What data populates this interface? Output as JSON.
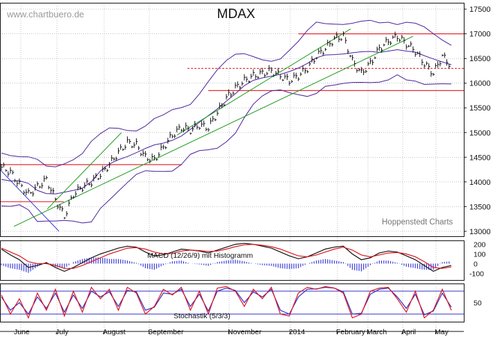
{
  "watermark": "www.chartbuero.de",
  "credit": "Hoppenstedt Charts",
  "colors": {
    "price": "#111111",
    "bollinger": "#4a1f9e",
    "trend": "#1a9a1a",
    "level": "#e0141e",
    "macd": "#111111",
    "signal": "#e0141e",
    "histogram": "#3b3bd6",
    "stoch_k": "#e0141e",
    "stoch_d": "#3030c8",
    "stoch_band": "#3030c8",
    "grid": "#9a9a9a"
  },
  "chart_data": [
    {
      "type": "line",
      "title": "MDAX",
      "ylim": [
        12900,
        17600
      ],
      "y_ticks": [
        "17500",
        "17000",
        "16500",
        "16000",
        "15500",
        "15000",
        "14500",
        "14000",
        "13500",
        "13000"
      ],
      "x_ticks": [
        "June",
        "July",
        "August",
        "September",
        "November",
        "2014",
        "February",
        "March",
        "April",
        "May"
      ],
      "series": [
        {
          "x": [
            0,
            5,
            10,
            15,
            20,
            25,
            30,
            35,
            40,
            45,
            50,
            55,
            60,
            65,
            70,
            75,
            80,
            85,
            90,
            95,
            100,
            105,
            110,
            115,
            120,
            125,
            130,
            135,
            140,
            145,
            150,
            155,
            160,
            165,
            170,
            175,
            180,
            185,
            190,
            195,
            200,
            205,
            210,
            215,
            220,
            225,
            230,
            235,
            240,
            245,
            250
          ],
          "values": [
            14300,
            14200,
            13950,
            13750,
            13900,
            14050,
            13650,
            13300,
            13750,
            13900,
            14000,
            14150,
            14350,
            14600,
            14800,
            14750,
            14500,
            14450,
            14700,
            14950,
            15100,
            15050,
            15150,
            15100,
            15400,
            15700,
            15900,
            16050,
            16150,
            16200,
            16250,
            16150,
            16050,
            16150,
            16300,
            16550,
            16700,
            16900,
            16950,
            16450,
            16200,
            16400,
            16700,
            16850,
            16950,
            16800,
            16650,
            16400,
            16200,
            16550,
            16350
          ]
        }
      ],
      "levels": [
        17000,
        16300,
        15850,
        14350,
        13600
      ],
      "macd": {
        "label": "MACD (12/26/9) mit Histogramm",
        "y_ticks": [
          "200",
          "100",
          "0",
          "-100"
        ],
        "ylim": [
          -170,
          240
        ],
        "macd": [
          150,
          90,
          40,
          -40,
          -20,
          10,
          -40,
          -80,
          -40,
          10,
          60,
          100,
          130,
          160,
          180,
          170,
          120,
          80,
          90,
          120,
          150,
          140,
          130,
          110,
          140,
          170,
          200,
          210,
          200,
          180,
          160,
          120,
          80,
          50,
          70,
          110,
          150,
          170,
          180,
          100,
          40,
          60,
          110,
          130,
          120,
          80,
          40,
          -20,
          -80,
          -40,
          -20
        ],
        "signal": [
          160,
          120,
          80,
          20,
          0,
          0,
          -20,
          -50,
          -50,
          -20,
          20,
          60,
          100,
          130,
          160,
          165,
          150,
          120,
          100,
          105,
          130,
          140,
          135,
          125,
          130,
          150,
          175,
          195,
          200,
          190,
          175,
          150,
          115,
          80,
          70,
          90,
          120,
          150,
          170,
          140,
          90,
          70,
          90,
          110,
          115,
          100,
          70,
          20,
          -40,
          -50,
          -35
        ]
      },
      "stochastik": {
        "label": "Stochastik (5/3/3)",
        "y_ticks": [
          "50"
        ],
        "ylim": [
          0,
          100
        ],
        "bands": [
          80,
          20
        ],
        "k": [
          70,
          20,
          60,
          10,
          75,
          30,
          85,
          15,
          80,
          25,
          90,
          60,
          85,
          30,
          90,
          75,
          20,
          40,
          85,
          70,
          90,
          30,
          80,
          20,
          88,
          92,
          80,
          40,
          85,
          60,
          90,
          20,
          15,
          75,
          90,
          85,
          92,
          88,
          75,
          10,
          20,
          80,
          88,
          90,
          60,
          25,
          80,
          10,
          30,
          85,
          30
        ],
        "d": [
          65,
          30,
          50,
          20,
          65,
          35,
          75,
          25,
          70,
          35,
          80,
          65,
          78,
          40,
          82,
          78,
          30,
          38,
          75,
          72,
          85,
          40,
          72,
          28,
          80,
          88,
          82,
          50,
          78,
          65,
          85,
          30,
          20,
          65,
          85,
          86,
          90,
          88,
          78,
          20,
          22,
          72,
          85,
          88,
          65,
          35,
          72,
          18,
          28,
          75,
          38
        ]
      }
    }
  ]
}
